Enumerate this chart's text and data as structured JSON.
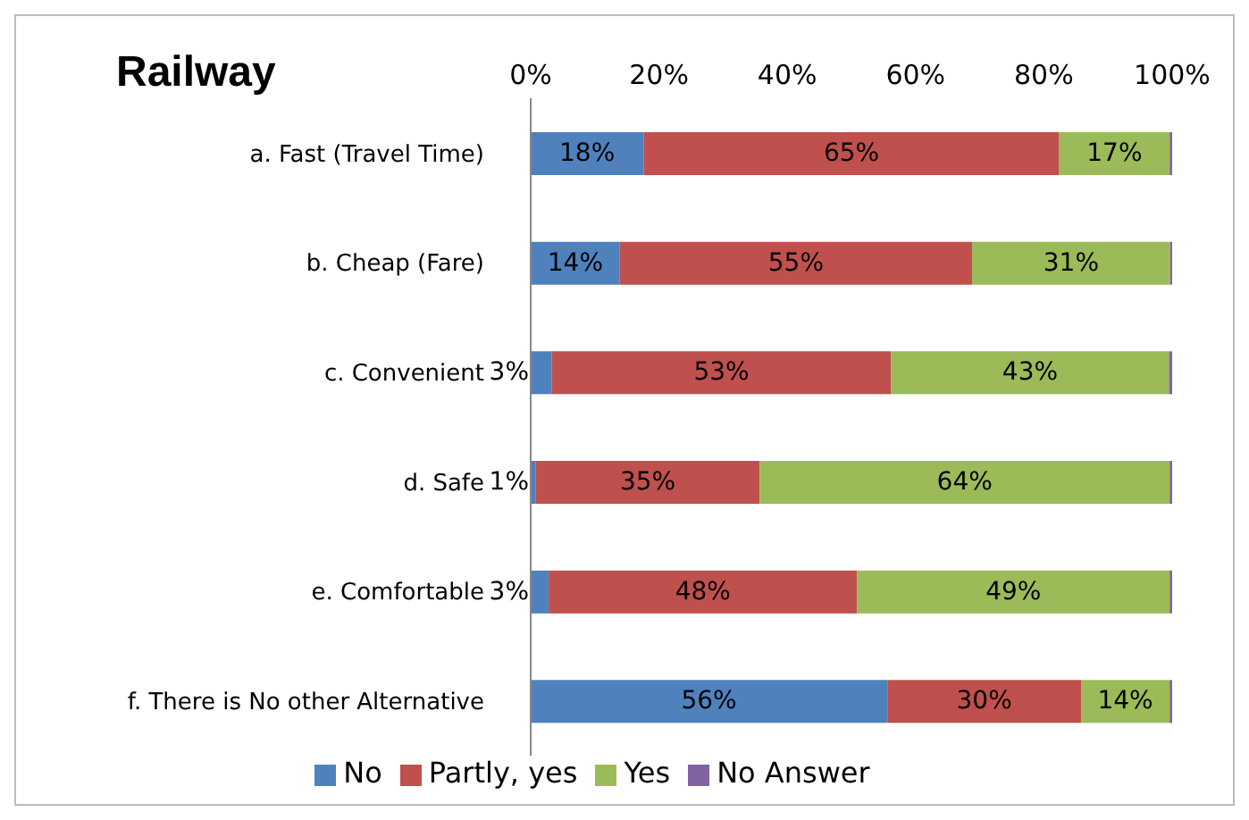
{
  "chart_data": {
    "type": "bar",
    "orientation": "horizontal",
    "stacked": true,
    "title": "Railway",
    "categories": [
      "a. Fast (Travel Time)",
      "b. Cheap (Fare)",
      "c. Convenient",
      "d. Safe",
      "e. Comfortable",
      "f. There is No other Alternative"
    ],
    "series": [
      {
        "name": "No",
        "color": "#4f81bd",
        "values": [
          17.6,
          13.9,
          3.3,
          0.8,
          2.8,
          55.6
        ],
        "value_labels": [
          "18%",
          "14%",
          "3%",
          "1%",
          "3%",
          "56%"
        ]
      },
      {
        "name": "Partly, yes",
        "color": "#c0504d",
        "values": [
          64.8,
          54.9,
          52.9,
          34.9,
          48.1,
          30.2
        ],
        "value_labels": [
          "65%",
          "55%",
          "53%",
          "35%",
          "48%",
          "30%"
        ]
      },
      {
        "name": "Yes",
        "color": "#9bbb59",
        "values": [
          17.2,
          30.9,
          43.3,
          63.9,
          48.7,
          13.8
        ],
        "value_labels": [
          "17%",
          "31%",
          "43%",
          "64%",
          "49%",
          "14%"
        ]
      },
      {
        "name": "No Answer",
        "color": "#8064a2",
        "values": [
          0.4,
          0.3,
          0.5,
          0.4,
          0.4,
          0.4
        ]
      }
    ],
    "xlim": [
      0,
      100
    ],
    "xticks": [
      {
        "value": 0,
        "label": "0%"
      },
      {
        "value": 20,
        "label": "20%"
      },
      {
        "value": 40,
        "label": "40%"
      },
      {
        "value": 60,
        "label": "60%"
      },
      {
        "value": 80,
        "label": "80%"
      },
      {
        "value": 100,
        "label": "100%"
      }
    ],
    "grid": false,
    "legend": "bottom"
  }
}
